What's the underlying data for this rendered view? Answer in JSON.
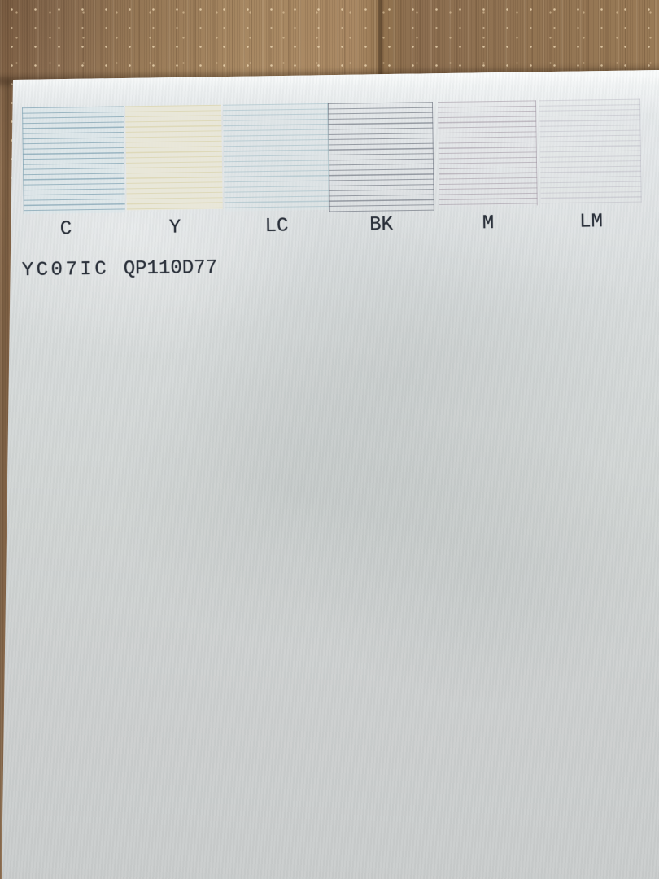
{
  "scene": {
    "description": "photo of a printer nozzle-check test page lying on a wooden floor",
    "colors": {
      "wood_base": "#9a7b58",
      "wood_seam": "#6f5740",
      "paper_top": "#e3e7e9",
      "paper_mid": "#d2d6d5",
      "paper_bottom": "#c9cccc",
      "ink_text": "#2a303a"
    }
  },
  "test_page": {
    "swatches": [
      {
        "label": "C",
        "name": "cyan",
        "line_color": "rgba(125,160,176,0.70)",
        "bg_color": "rgba(214,231,236,0.45)",
        "edges": "left"
      },
      {
        "label": "Y",
        "name": "yellow",
        "line_color": "rgba(213,206,160,0.55)",
        "bg_color": "rgba(233,231,216,0.95)",
        "edges": ""
      },
      {
        "label": "LC",
        "name": "light-cyan",
        "line_color": "rgba(148,180,190,0.48)",
        "bg_color": "rgba(219,230,233,0.40)",
        "edges": "right"
      },
      {
        "label": "BK",
        "name": "black",
        "line_color": "rgba(105,110,122,0.62)",
        "bg_color": "rgba(222,226,228,0.30)",
        "edges": "left-right"
      },
      {
        "label": "M",
        "name": "magenta",
        "line_color": "rgba(156,144,158,0.52)",
        "bg_color": "rgba(225,226,228,0.30)",
        "edges": "right"
      },
      {
        "label": "LM",
        "name": "light-magenta",
        "line_color": "rgba(172,168,182,0.35)",
        "bg_color": "rgba(226,227,230,0.30)",
        "edges": "right"
      }
    ],
    "code_left": "YC07IC",
    "code_right": "QP110D77"
  }
}
